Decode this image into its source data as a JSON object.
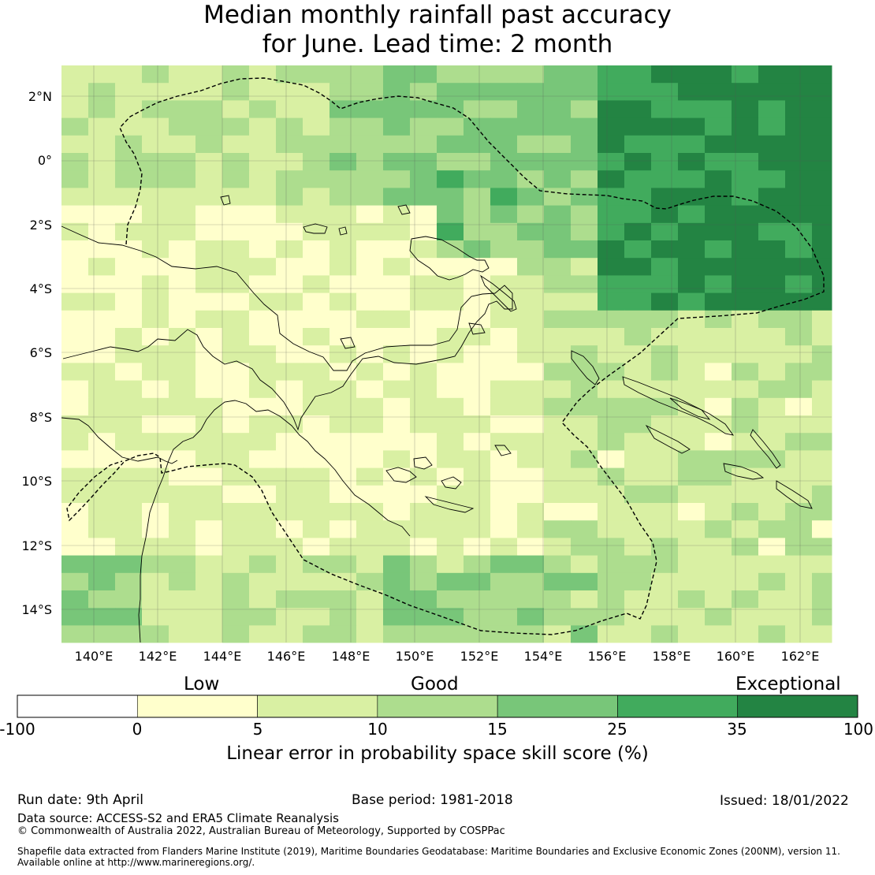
{
  "title": {
    "line1": "Median monthly rainfall past accuracy",
    "line2": "for June. Lead time: 2 month"
  },
  "map": {
    "lat_labels": [
      "2°N",
      "0°",
      "2°S",
      "4°S",
      "6°S",
      "8°S",
      "10°S",
      "12°S",
      "14°S"
    ],
    "lon_labels": [
      "140°E",
      "142°E",
      "144°E",
      "146°E",
      "148°E",
      "150°E",
      "152°E",
      "154°E",
      "156°E",
      "158°E",
      "160°E",
      "162°E"
    ]
  },
  "colorbar": {
    "categories": [
      "Low",
      "Good",
      "Exceptional"
    ],
    "ticks": [
      "-100",
      "0",
      "5",
      "10",
      "15",
      "25",
      "35",
      "100"
    ],
    "colors": [
      "#ffffff",
      "#ffffcc",
      "#d9f0a3",
      "#addd8e",
      "#78c679",
      "#41ab5d",
      "#238443"
    ],
    "label": "Linear error in probability space skill score (%)"
  },
  "footer": {
    "run_date": "Run date: 9th April",
    "base_period": "Base period: 1981-2018",
    "issued": "Issued: 18/01/2022",
    "data_source": "Data source: ACCESS-S2 and ERA5 Climate Reanalysis",
    "copyright": "© Commonwealth of Australia 2022, Australian Bureau of Meteorology, Supported by COSPPac",
    "shapefile_line1": "Shapefile data extracted from Flanders Marine Institute (2019), Maritime Boundaries Geodatabase: Maritime Boundaries and Exclusive Economic Zones (200NM), version 11.",
    "shapefile_line2": "Available online at http://www.marineregions.org/."
  }
}
